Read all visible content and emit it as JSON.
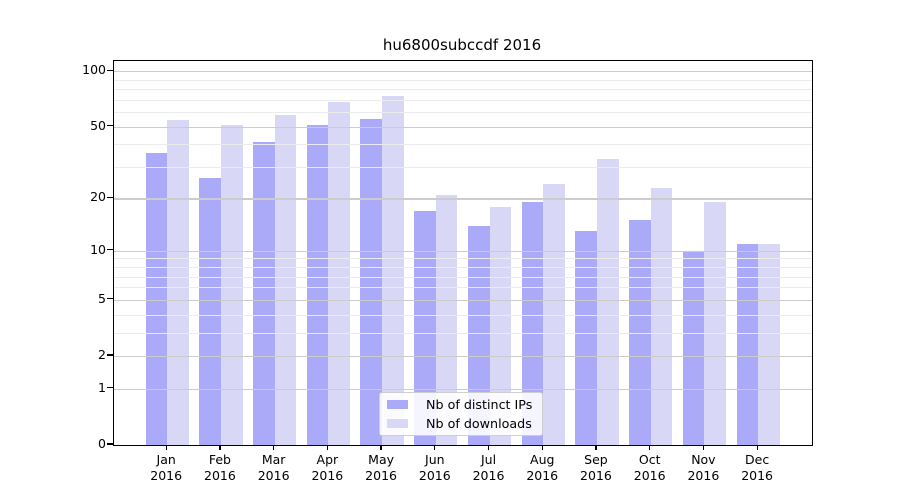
{
  "chart_data": {
    "type": "bar",
    "title": "hu6800subccdf 2016",
    "categories": [
      "Jan",
      "Feb",
      "Mar",
      "Apr",
      "May",
      "Jun",
      "Jul",
      "Aug",
      "Sep",
      "Oct",
      "Nov",
      "Dec"
    ],
    "x_tick_year": "2016",
    "series": [
      {
        "name": "Nb of distinct IPs",
        "color": "#aaaaf8",
        "values": [
          36,
          26,
          41,
          51,
          55,
          17,
          14,
          19,
          13,
          15,
          10,
          11
        ]
      },
      {
        "name": "Nb of downloads",
        "color": "#d8d8f6",
        "values": [
          54,
          51,
          58,
          68,
          73,
          21,
          18,
          24,
          33,
          23,
          19,
          11
        ]
      }
    ],
    "ylabel": "",
    "xlabel": "",
    "y_scale": "log1p",
    "ylim": [
      0,
      113.5
    ],
    "y_major_ticks": [
      100,
      50,
      20,
      10,
      5,
      2,
      1,
      0
    ],
    "y_minor_ticks": [
      3,
      4,
      6,
      7,
      8,
      9,
      30,
      40,
      60,
      70,
      80,
      90
    ],
    "grid": "both",
    "grid_above_bars": true,
    "legend_position": "lower center",
    "colors": {
      "major_grid": "#cccccc",
      "minor_grid": "#ebebeb",
      "axis": "#000000",
      "text": "#000000",
      "background": "#ffffff"
    }
  }
}
